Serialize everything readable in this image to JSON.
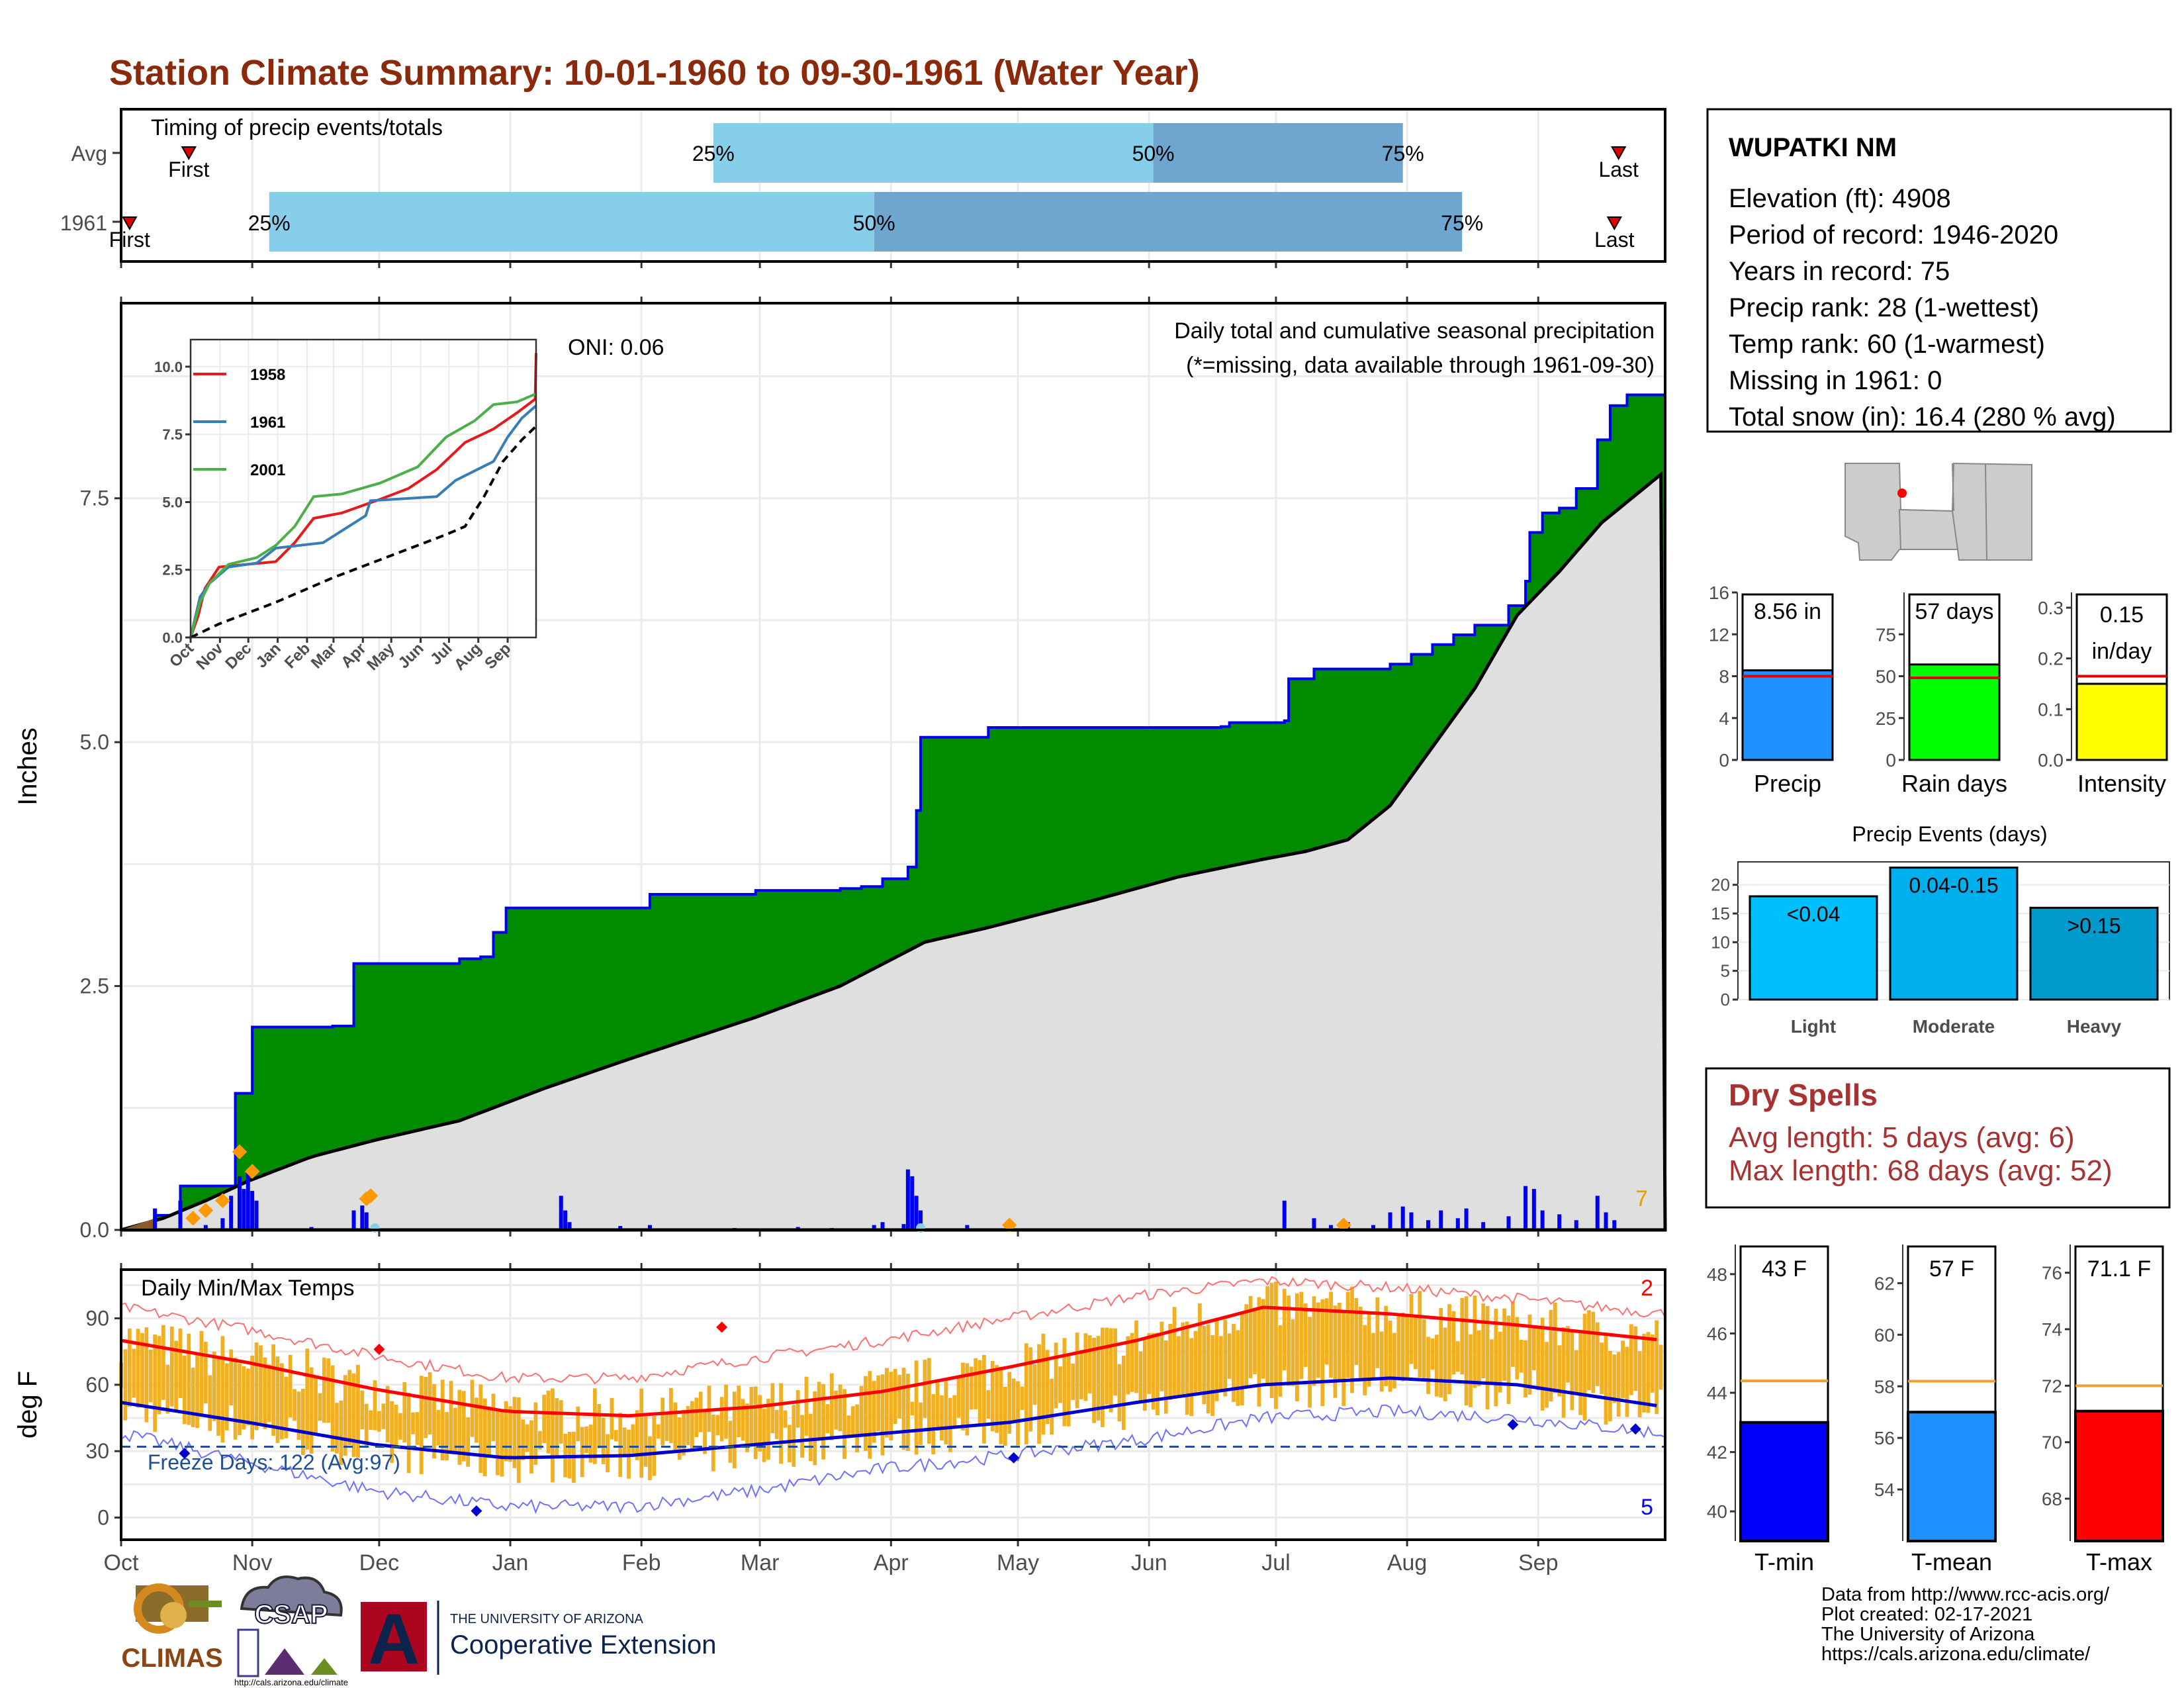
{
  "title": "Station Climate Summary: 10-01-1960 to 09-30-1961 (Water Year)",
  "colors": {
    "title": "#8b2a0b",
    "light_blue": "#87ceeb",
    "mid_blue": "#6ea6cf",
    "green": "#008b00",
    "gray": "#dfdfdf",
    "orange": "#f0b021",
    "dry_red": "#a83232",
    "precip_bar": "#1e90ff",
    "rain_bar": "#00ff00",
    "intensity_bar": "#ffff00",
    "tmin_bar": "#0000ff",
    "tmean_bar": "#1e90ff",
    "tmax_bar": "#ff0000",
    "light_ev": "#00bfff",
    "mod_ev": "#00b0ee",
    "heavy_ev": "#009acd"
  },
  "months": [
    "Oct",
    "Nov",
    "Dec",
    "Jan",
    "Feb",
    "Mar",
    "Apr",
    "May",
    "Jun",
    "Jul",
    "Aug",
    "Sep"
  ],
  "timing": {
    "title": "Timing of precip events/totals",
    "rows": [
      {
        "label": "Avg",
        "first_day": 16,
        "first_label": "First",
        "p25_day": 140,
        "p50_day": 244,
        "p75_day": 303,
        "p25_label": "25%",
        "p50_label": "50%",
        "p75_label": "75%",
        "last_day": 354,
        "last_label": "Last"
      },
      {
        "label": "1961",
        "first_day": 2,
        "first_label": "First",
        "p25_day": 35,
        "p50_day": 178,
        "p75_day": 317,
        "p25_label": "25%",
        "p50_label": "50%",
        "p75_label": "75%",
        "last_day": 353,
        "last_label": "Last"
      }
    ]
  },
  "precip": {
    "ylabel": "Inches",
    "yticks": [
      "0.0",
      "2.5",
      "5.0",
      "7.5"
    ],
    "ylim": [
      0,
      9.5
    ],
    "oni": "ONI: 0.06",
    "legend_title": "Daily total and cumulative seasonal precipitation",
    "missing_note": "(*=missing, data available through 1961-09-30)",
    "corner_count": "7"
  },
  "inset": {
    "yticks": [
      "0.0",
      "2.5",
      "5.0",
      "7.5",
      "10.0"
    ],
    "ylim": [
      0,
      11
    ],
    "month_labels": [
      "Oct",
      "Nov",
      "Dec",
      "Jan",
      "Feb",
      "Mar",
      "Apr",
      "May",
      "Jun",
      "Jul",
      "Aug",
      "Sep"
    ],
    "legend": [
      "1958",
      "1961",
      "2001"
    ]
  },
  "temps": {
    "ylabel": "deg F",
    "title": "Daily Min/Max Temps",
    "yticks": [
      "0",
      "30",
      "60",
      "90"
    ],
    "ylim": [
      -10,
      112
    ],
    "freeze": "Freeze Days: 122 (Avg:97)",
    "count_red": "2",
    "count_blue": "5"
  },
  "station": {
    "name": "WUPATKI NM",
    "lines": [
      "Elevation (ft): 4908",
      "Period of record: 1946-2020",
      "Years in record: 75",
      "Precip rank: 28 (1-wettest)",
      "Temp rank: 60 (1-warmest)",
      "Missing in 1961: 0",
      "Total snow (in): 16.4 (280 % avg)"
    ]
  },
  "mini_bars": [
    {
      "label": "Precip",
      "value": 8.56,
      "value_text": "8.56 in",
      "avg": 8.0,
      "ymax": 16,
      "yticks": [
        "0",
        "4",
        "8",
        "12",
        "16"
      ],
      "color": "#1e90ff"
    },
    {
      "label": "Rain days",
      "value": 57,
      "value_text": "57 days",
      "avg": 49,
      "ymax": 100,
      "yticks": [
        "0",
        "25",
        "50",
        "75"
      ],
      "color": "#00ff00"
    },
    {
      "label": "Intensity",
      "value": 0.15,
      "value_text": "0.15",
      "value_text2": "in/day",
      "avg": 0.165,
      "ymax": 0.33,
      "yticks": [
        "0.0",
        "0.1",
        "0.2",
        "0.3"
      ],
      "color": "#ffff00"
    }
  ],
  "events": {
    "title": "Precip Events (days)",
    "yticks": [
      "0",
      "5",
      "10",
      "15",
      "20"
    ],
    "ymax": 24,
    "bars": [
      {
        "name": "Light",
        "label": "<0.04",
        "value": 18,
        "color": "#00bfff"
      },
      {
        "name": "Moderate",
        "label": "0.04-0.15",
        "value": 23,
        "color": "#00b0ee"
      },
      {
        "name": "Heavy",
        "label": ">0.15",
        "value": 16,
        "color": "#009acd"
      }
    ]
  },
  "dry_spells": {
    "title": "Dry Spells",
    "avg": "Avg length: 5 days (avg: 6)",
    "max": "Max length: 68 days (avg: 52)"
  },
  "temp_bars": [
    {
      "label": "T-min",
      "value": 43,
      "value_text": "43 F",
      "avg": 44.4,
      "ymin": 39,
      "ymax": 49,
      "ticks": [
        40,
        42,
        44,
        46,
        48
      ],
      "color": "#0000ff"
    },
    {
      "label": "T-mean",
      "value": 57,
      "value_text": "57 F",
      "avg": 58.2,
      "ymin": 52,
      "ymax": 63.5,
      "ticks": [
        54,
        56,
        58,
        60,
        62
      ],
      "color": "#1e90ff"
    },
    {
      "label": "T-max",
      "value": 71.1,
      "value_text": "71.1 F",
      "avg": 72,
      "ymin": 66.5,
      "ymax": 77,
      "ticks": [
        68,
        70,
        72,
        74,
        76
      ],
      "color": "#ff0000"
    }
  ],
  "credits": [
    "Data from http://www.rcc-acis.org/",
    "Plot created: 02-17-2021",
    "The University of Arizona",
    "https://cals.arizona.edu/climate/"
  ],
  "logos": {
    "climas": "CLIMAS",
    "csap": "CSAP",
    "csap_url": "http://cals.arizona.edu/climate",
    "ua_letter": "A",
    "ua_top": "THE UNIVERSITY OF ARIZONA",
    "ua_bottom": "Cooperative Extension"
  },
  "chart_data": [
    {
      "type": "bar",
      "name": "timing",
      "categories": [
        "Avg",
        "1961"
      ],
      "series": [
        {
          "values": [
            [
              16,
              140,
              244,
              303,
              354
            ],
            [
              2,
              35,
              178,
              317,
              353
            ]
          ]
        }
      ],
      "note": "day-of-water-year of first event, 25%, 50%, 75% of total, last event"
    },
    {
      "type": "area",
      "name": "cumulative_precipitation",
      "x_unit": "day of water year (1 = Oct 1)",
      "ylim": [
        0,
        9.5
      ],
      "series": [
        {
          "name": "1961",
          "points": [
            [
              0,
              0
            ],
            [
              8,
              0.15
            ],
            [
              14,
              0.45
            ],
            [
              20,
              0.45
            ],
            [
              27,
              1.4
            ],
            [
              31,
              2.08
            ],
            [
              45,
              2.08
            ],
            [
              50,
              2.09
            ],
            [
              55,
              2.73
            ],
            [
              75,
              2.73
            ],
            [
              80,
              2.78
            ],
            [
              85,
              2.8
            ],
            [
              88,
              3.05
            ],
            [
              91,
              3.3
            ],
            [
              120,
              3.3
            ],
            [
              125,
              3.44
            ],
            [
              150,
              3.48
            ],
            [
              170,
              3.5
            ],
            [
              175,
              3.52
            ],
            [
              180,
              3.6
            ],
            [
              186,
              3.72
            ],
            [
              188,
              4.3
            ],
            [
              189,
              5.05
            ],
            [
              200,
              5.05
            ],
            [
              205,
              5.15
            ],
            [
              260,
              5.16
            ],
            [
              262,
              5.2
            ],
            [
              275,
              5.22
            ],
            [
              276,
              5.65
            ],
            [
              282,
              5.75
            ],
            [
              300,
              5.8
            ],
            [
              305,
              5.9
            ],
            [
              310,
              6.0
            ],
            [
              315,
              6.1
            ],
            [
              320,
              6.2
            ],
            [
              328,
              6.4
            ],
            [
              332,
              6.65
            ],
            [
              333,
              7.15
            ],
            [
              336,
              7.35
            ],
            [
              340,
              7.4
            ],
            [
              344,
              7.6
            ],
            [
              349,
              8.1
            ],
            [
              352,
              8.45
            ],
            [
              356,
              8.56
            ],
            [
              365,
              8.56
            ]
          ]
        },
        {
          "name": "Average",
          "points": [
            [
              0,
              0
            ],
            [
              10,
              0.12
            ],
            [
              20,
              0.3
            ],
            [
              30,
              0.5
            ],
            [
              45,
              0.75
            ],
            [
              60,
              0.92
            ],
            [
              80,
              1.12
            ],
            [
              100,
              1.45
            ],
            [
              120,
              1.75
            ],
            [
              150,
              2.18
            ],
            [
              170,
              2.5
            ],
            [
              190,
              2.95
            ],
            [
              205,
              3.1
            ],
            [
              230,
              3.38
            ],
            [
              250,
              3.62
            ],
            [
              270,
              3.8
            ],
            [
              280,
              3.88
            ],
            [
              290,
              4.0
            ],
            [
              300,
              4.35
            ],
            [
              310,
              4.95
            ],
            [
              320,
              5.55
            ],
            [
              330,
              6.3
            ],
            [
              340,
              6.75
            ],
            [
              350,
              7.25
            ],
            [
              365,
              7.78
            ]
          ]
        }
      ]
    },
    {
      "type": "line",
      "name": "inset_cumulative",
      "ylim": [
        0,
        11
      ],
      "series": [
        {
          "name": "1958",
          "points": [
            [
              0,
              0
            ],
            [
              8,
              0.8
            ],
            [
              15,
              1.8
            ],
            [
              30,
              2.6
            ],
            [
              60,
              2.7
            ],
            [
              90,
              2.8
            ],
            [
              110,
              3.5
            ],
            [
              130,
              4.4
            ],
            [
              160,
              4.6
            ],
            [
              200,
              5.1
            ],
            [
              230,
              5.5
            ],
            [
              260,
              6.2
            ],
            [
              290,
              7.2
            ],
            [
              320,
              7.7
            ],
            [
              345,
              8.3
            ],
            [
              364,
              8.8
            ],
            [
              365,
              10.5
            ]
          ]
        },
        {
          "name": "1961",
          "points": [
            [
              0,
              0
            ],
            [
              10,
              1.5
            ],
            [
              20,
              2.0
            ],
            [
              40,
              2.6
            ],
            [
              70,
              2.75
            ],
            [
              90,
              3.3
            ],
            [
              140,
              3.5
            ],
            [
              185,
              4.5
            ],
            [
              190,
              5.05
            ],
            [
              260,
              5.2
            ],
            [
              280,
              5.8
            ],
            [
              320,
              6.5
            ],
            [
              335,
              7.4
            ],
            [
              350,
              8.1
            ],
            [
              365,
              8.56
            ]
          ]
        },
        {
          "name": "2001",
          "points": [
            [
              0,
              0
            ],
            [
              10,
              1.3
            ],
            [
              20,
              2.0
            ],
            [
              40,
              2.7
            ],
            [
              70,
              2.95
            ],
            [
              90,
              3.4
            ],
            [
              110,
              4.1
            ],
            [
              130,
              5.2
            ],
            [
              160,
              5.3
            ],
            [
              200,
              5.7
            ],
            [
              240,
              6.3
            ],
            [
              270,
              7.4
            ],
            [
              300,
              8.0
            ],
            [
              320,
              8.6
            ],
            [
              345,
              8.7
            ],
            [
              365,
              9.0
            ]
          ]
        },
        {
          "name": "Average",
          "points": [
            [
              0,
              0
            ],
            [
              30,
              0.5
            ],
            [
              60,
              0.9
            ],
            [
              90,
              1.3
            ],
            [
              120,
              1.75
            ],
            [
              150,
              2.2
            ],
            [
              180,
              2.6
            ],
            [
              210,
              3.0
            ],
            [
              240,
              3.4
            ],
            [
              270,
              3.8
            ],
            [
              290,
              4.1
            ],
            [
              310,
              5.2
            ],
            [
              330,
              6.5
            ],
            [
              350,
              7.3
            ],
            [
              365,
              7.8
            ]
          ]
        }
      ]
    },
    {
      "type": "line",
      "name": "daily_temperature_normals",
      "ylim": [
        -10,
        112
      ],
      "series": [
        {
          "name": "avg_max",
          "points": [
            [
              0,
              80
            ],
            [
              30,
              70
            ],
            [
              60,
              58
            ],
            [
              91,
              48
            ],
            [
              120,
              46
            ],
            [
              150,
              50
            ],
            [
              180,
              57
            ],
            [
              210,
              68
            ],
            [
              240,
              80
            ],
            [
              270,
              95
            ],
            [
              300,
              92
            ],
            [
              330,
              87
            ],
            [
              365,
              80
            ]
          ]
        },
        {
          "name": "avg_min",
          "points": [
            [
              0,
              52
            ],
            [
              30,
              43
            ],
            [
              60,
              33
            ],
            [
              91,
              27
            ],
            [
              120,
              28
            ],
            [
              150,
              33
            ],
            [
              180,
              38
            ],
            [
              210,
              43
            ],
            [
              240,
              52
            ],
            [
              270,
              60
            ],
            [
              300,
              63
            ],
            [
              330,
              60
            ],
            [
              365,
              50
            ]
          ]
        },
        {
          "name": "record_max",
          "points": [
            [
              0,
              95
            ],
            [
              30,
              85
            ],
            [
              60,
              73
            ],
            [
              91,
              63
            ],
            [
              120,
              63
            ],
            [
              150,
              72
            ],
            [
              180,
              80
            ],
            [
              210,
              90
            ],
            [
              240,
              100
            ],
            [
              270,
              107
            ],
            [
              300,
              104
            ],
            [
              330,
              99
            ],
            [
              365,
              92
            ]
          ]
        },
        {
          "name": "record_min",
          "points": [
            [
              0,
              38
            ],
            [
              30,
              25
            ],
            [
              60,
              12
            ],
            [
              91,
              5
            ],
            [
              120,
              5
            ],
            [
              150,
              12
            ],
            [
              180,
              22
            ],
            [
              210,
              28
            ],
            [
              240,
              35
            ],
            [
              270,
              45
            ],
            [
              300,
              48
            ],
            [
              330,
              45
            ],
            [
              365,
              38
            ]
          ]
        }
      ]
    },
    {
      "type": "bar",
      "name": "precip_summary",
      "categories": [
        "Precip",
        "Rain days",
        "Intensity"
      ],
      "values": [
        8.56,
        57,
        0.15
      ]
    },
    {
      "type": "bar",
      "name": "precip_events",
      "categories": [
        "Light",
        "Moderate",
        "Heavy"
      ],
      "values": [
        18,
        23,
        16
      ]
    },
    {
      "type": "bar",
      "name": "temperature_summary",
      "categories": [
        "T-min",
        "T-mean",
        "T-max"
      ],
      "values": [
        43,
        57,
        71.1
      ]
    }
  ]
}
